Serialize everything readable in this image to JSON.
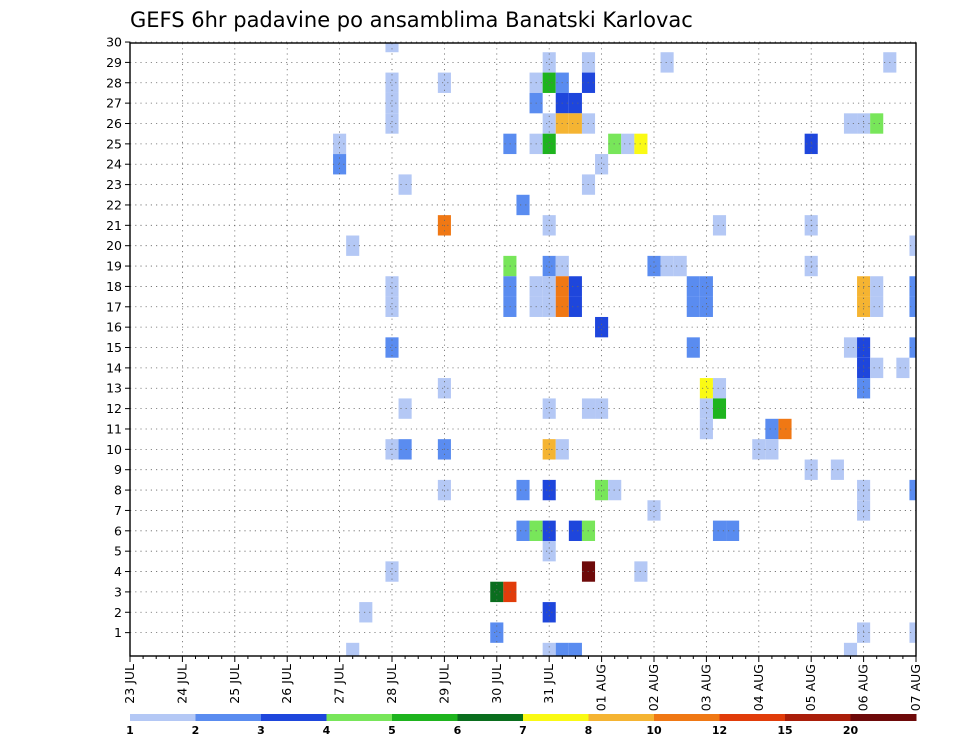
{
  "chart_data": {
    "type": "heatmap",
    "title": "GEFS 6hr padavine po ansamblima Banatski Karlovac",
    "xlabel": "",
    "ylabel": "",
    "x_tick_labels": [
      "23 JUL",
      "24 JUL",
      "25 JUL",
      "26 JUL",
      "27 JUL",
      "28 JUL",
      "29 JUL",
      "30 JUL",
      "31 JUL",
      "01 AUG",
      "02 AUG",
      "03 AUG",
      "04 AUG",
      "05 AUG",
      "06 AUG",
      "07 AUG"
    ],
    "x_range_days": [
      0,
      15
    ],
    "time_step_hours": 6,
    "y_range": [
      0,
      30
    ],
    "y_tick_labels": [
      "1",
      "2",
      "3",
      "4",
      "5",
      "6",
      "7",
      "8",
      "9",
      "10",
      "11",
      "12",
      "13",
      "14",
      "15",
      "16",
      "17",
      "18",
      "19",
      "20",
      "21",
      "22",
      "23",
      "24",
      "25",
      "26",
      "27",
      "28",
      "29",
      "30"
    ],
    "grid": "dotted",
    "colorbar": {
      "placement": "bottom",
      "labels": [
        "1",
        "2",
        "3",
        "4",
        "5",
        "6",
        "7",
        "8",
        "10",
        "12",
        "15",
        "20"
      ],
      "colors": [
        "#b4c8f5",
        "#5a8cf0",
        "#1e46dc",
        "#78e65a",
        "#1eb41e",
        "#0a6e1e",
        "#fafa14",
        "#f5b432",
        "#f07814",
        "#e13c0a",
        "#aa1e0a",
        "#6e0a0a"
      ]
    },
    "cells_format": "[day_index_from_23_JUL, member, level_index]",
    "cells": [
      [
        5.0,
        30,
        0
      ],
      [
        5.0,
        28,
        0
      ],
      [
        8.0,
        29,
        0
      ],
      [
        8.75,
        29,
        0
      ],
      [
        10.25,
        29,
        0
      ],
      [
        14.5,
        29,
        0
      ],
      [
        6.0,
        28,
        0
      ],
      [
        7.75,
        28,
        0
      ],
      [
        8.0,
        28,
        4
      ],
      [
        8.25,
        28,
        1
      ],
      [
        8.75,
        28,
        2
      ],
      [
        7.75,
        27,
        1
      ],
      [
        8.25,
        27,
        2
      ],
      [
        8.5,
        27,
        2
      ],
      [
        5.0,
        27,
        0
      ],
      [
        5.0,
        26,
        0
      ],
      [
        8.0,
        26,
        0
      ],
      [
        8.25,
        26,
        7
      ],
      [
        8.5,
        26,
        7
      ],
      [
        8.75,
        26,
        0
      ],
      [
        13.75,
        26,
        0
      ],
      [
        14.0,
        26,
        0
      ],
      [
        14.25,
        26,
        3
      ],
      [
        4.0,
        25,
        0
      ],
      [
        7.25,
        25,
        1
      ],
      [
        7.75,
        25,
        0
      ],
      [
        8.0,
        25,
        4
      ],
      [
        9.25,
        25,
        3
      ],
      [
        9.5,
        25,
        0
      ],
      [
        9.75,
        25,
        6
      ],
      [
        13.0,
        25,
        2
      ],
      [
        4.0,
        24,
        1
      ],
      [
        9.0,
        24,
        0
      ],
      [
        5.25,
        23,
        0
      ],
      [
        8.75,
        23,
        0
      ],
      [
        7.5,
        22,
        1
      ],
      [
        6.0,
        21,
        8
      ],
      [
        8.0,
        21,
        0
      ],
      [
        11.25,
        21,
        0
      ],
      [
        13.0,
        21,
        0
      ],
      [
        4.25,
        20,
        0
      ],
      [
        15.0,
        20,
        0
      ],
      [
        7.25,
        19,
        3
      ],
      [
        8.0,
        19,
        1
      ],
      [
        8.25,
        19,
        0
      ],
      [
        10.0,
        19,
        1
      ],
      [
        10.25,
        19,
        0
      ],
      [
        10.5,
        19,
        0
      ],
      [
        13.0,
        19,
        0
      ],
      [
        5.0,
        18,
        0
      ],
      [
        7.25,
        18,
        1
      ],
      [
        7.75,
        18,
        0
      ],
      [
        8.0,
        18,
        0
      ],
      [
        8.25,
        18,
        8
      ],
      [
        8.5,
        18,
        2
      ],
      [
        10.75,
        18,
        1
      ],
      [
        11.0,
        18,
        1
      ],
      [
        14.0,
        18,
        7
      ],
      [
        14.25,
        18,
        0
      ],
      [
        15.0,
        18,
        1
      ],
      [
        5.0,
        17,
        0
      ],
      [
        7.25,
        17,
        1
      ],
      [
        7.75,
        17,
        0
      ],
      [
        8.0,
        17,
        0
      ],
      [
        8.25,
        17,
        8
      ],
      [
        8.5,
        17,
        2
      ],
      [
        10.75,
        17,
        1
      ],
      [
        11.0,
        17,
        1
      ],
      [
        14.0,
        17,
        7
      ],
      [
        14.25,
        17,
        0
      ],
      [
        15.0,
        17,
        1
      ],
      [
        9.0,
        16,
        2
      ],
      [
        5.0,
        15,
        1
      ],
      [
        10.75,
        15,
        1
      ],
      [
        13.75,
        15,
        0
      ],
      [
        14.0,
        15,
        2
      ],
      [
        15.0,
        15,
        1
      ],
      [
        14.0,
        14,
        2
      ],
      [
        14.25,
        14,
        0
      ],
      [
        14.75,
        14,
        0
      ],
      [
        6.0,
        13,
        0
      ],
      [
        11.0,
        13,
        6
      ],
      [
        11.25,
        13,
        0
      ],
      [
        14.0,
        13,
        1
      ],
      [
        5.25,
        12,
        0
      ],
      [
        8.0,
        12,
        0
      ],
      [
        8.75,
        12,
        0
      ],
      [
        9.0,
        12,
        0
      ],
      [
        11.0,
        12,
        0
      ],
      [
        11.25,
        12,
        4
      ],
      [
        11.0,
        11,
        0
      ],
      [
        12.25,
        11,
        1
      ],
      [
        12.5,
        11,
        8
      ],
      [
        5.0,
        10,
        0
      ],
      [
        5.25,
        10,
        1
      ],
      [
        6.0,
        10,
        1
      ],
      [
        8.0,
        10,
        7
      ],
      [
        8.25,
        10,
        0
      ],
      [
        12.0,
        10,
        0
      ],
      [
        12.25,
        10,
        0
      ],
      [
        13.0,
        9,
        0
      ],
      [
        13.5,
        9,
        0
      ],
      [
        6.0,
        8,
        0
      ],
      [
        7.5,
        8,
        1
      ],
      [
        8.0,
        8,
        2
      ],
      [
        9.0,
        8,
        3
      ],
      [
        9.25,
        8,
        0
      ],
      [
        14.0,
        8,
        0
      ],
      [
        15.0,
        8,
        1
      ],
      [
        10.0,
        7,
        0
      ],
      [
        14.0,
        7,
        0
      ],
      [
        7.5,
        6,
        1
      ],
      [
        7.75,
        6,
        3
      ],
      [
        8.0,
        6,
        2
      ],
      [
        8.5,
        6,
        2
      ],
      [
        8.75,
        6,
        3
      ],
      [
        11.25,
        6,
        1
      ],
      [
        11.5,
        6,
        1
      ],
      [
        8.0,
        5,
        0
      ],
      [
        5.0,
        4,
        0
      ],
      [
        8.75,
        4,
        11
      ],
      [
        9.75,
        4,
        0
      ],
      [
        7.0,
        3,
        5
      ],
      [
        7.25,
        3,
        9
      ],
      [
        4.5,
        2,
        0
      ],
      [
        8.0,
        2,
        2
      ],
      [
        7.0,
        1,
        1
      ],
      [
        14.0,
        1,
        0
      ],
      [
        15.0,
        1,
        0
      ],
      [
        4.25,
        0,
        0
      ],
      [
        8.0,
        0,
        0
      ],
      [
        8.25,
        0,
        1
      ],
      [
        8.5,
        0,
        1
      ],
      [
        13.75,
        0,
        0
      ]
    ]
  }
}
